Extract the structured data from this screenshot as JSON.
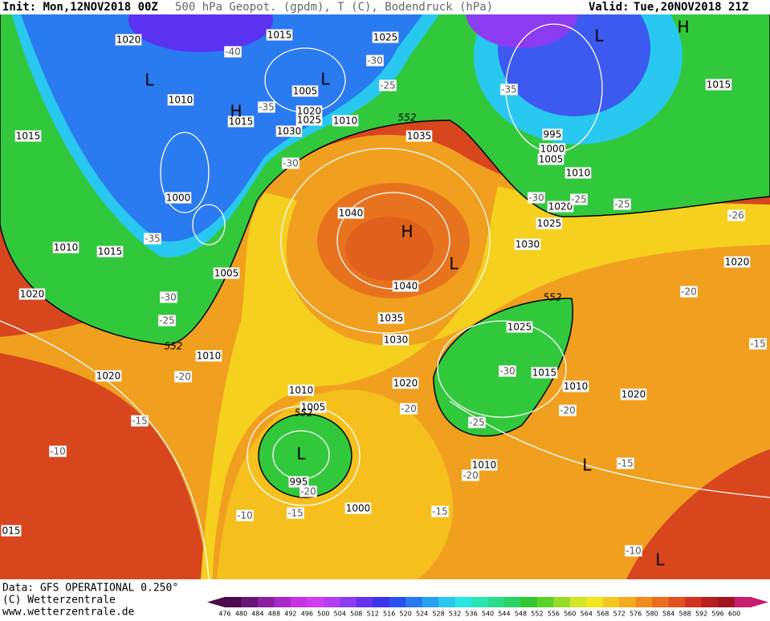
{
  "header": {
    "init": "Init: Mon,12NOV2018 00Z",
    "parameters": "500 hPa Geopot. (gpdm), T (C), Bodendruck (hPa)",
    "valid_label": "Valid:",
    "valid": "Tue,20NOV2018 21Z"
  },
  "map": {
    "pressure_labels": [
      "1020",
      "1015",
      "1025",
      "1010",
      "1015",
      "1005",
      "1020",
      "1025",
      "1010",
      "1030",
      "1035",
      "1015",
      "1000",
      "1040",
      "1010",
      "1015",
      "1005",
      "1020",
      "1040",
      "1035",
      "1030",
      "1010",
      "1020",
      "1010",
      "1005",
      "1020",
      "995",
      "1000",
      "1005",
      "1010",
      "1020",
      "1025",
      "1030",
      "1015",
      "1020",
      "1025",
      "1015",
      "1010",
      "1020",
      "1010",
      "995",
      "1000",
      "015"
    ],
    "temperature_labels": [
      "-40",
      "-30",
      "-25",
      "-35",
      "-35",
      "-30",
      "-35",
      "-30",
      "-25",
      "-20",
      "-15",
      "-10",
      "-30",
      "-25",
      "-25",
      "-26",
      "-20",
      "-15",
      "-30",
      "-20",
      "-25",
      "-20",
      "-15",
      "-20",
      "-20",
      "-15",
      "-10",
      "-15",
      "-10"
    ],
    "geopotential_labels": [
      "552",
      "552",
      "552",
      "552"
    ],
    "centers": [
      "L",
      "L",
      "H",
      "L",
      "H",
      "H",
      "L",
      "L",
      "L",
      "L"
    ]
  },
  "footer": {
    "data": "Data: GFS OPERATIONAL 0.250°",
    "copyright": "(C) Wetterzentrale",
    "url": "www.wetterzentrale.de"
  },
  "colorbar": {
    "ticks": [
      476,
      480,
      484,
      488,
      492,
      496,
      500,
      504,
      508,
      512,
      516,
      520,
      524,
      528,
      532,
      536,
      540,
      544,
      548,
      552,
      556,
      560,
      564,
      568,
      572,
      576,
      580,
      584,
      588,
      592,
      596,
      600
    ],
    "colors": [
      "#4b0a4b",
      "#6b1478",
      "#8c1ea0",
      "#a828c8",
      "#c832e6",
      "#d23cf0",
      "#b43cf0",
      "#8c3cf0",
      "#6432f0",
      "#3c32f0",
      "#2850f0",
      "#2878f0",
      "#28a0f0",
      "#28c8f0",
      "#28e6e6",
      "#28e6b4",
      "#28dc8c",
      "#28d264",
      "#32c832",
      "#5ad228",
      "#96dc28",
      "#d2e628",
      "#f5e61e",
      "#f5c81e",
      "#f5aa1e",
      "#f08c1e",
      "#eb6e1e",
      "#e1501e",
      "#d2321e",
      "#b91e1e",
      "#a0141e",
      "#c81e6e"
    ]
  }
}
